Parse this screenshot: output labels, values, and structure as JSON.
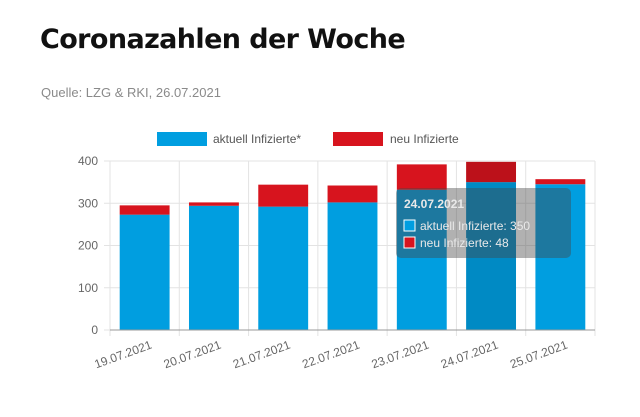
{
  "header": {
    "title": "Coronazahlen der Woche",
    "source": "Quelle: LZG & RKI, 26.07.2021"
  },
  "colors": {
    "active": "#009ee0",
    "new": "#d7141e",
    "grid": "#e3e3e3",
    "axis": "#999999"
  },
  "chart_data": {
    "type": "bar",
    "stacked": true,
    "categories": [
      "19.07.2021",
      "20.07.2021",
      "21.07.2021",
      "22.07.2021",
      "23.07.2021",
      "24.07.2021",
      "25.07.2021"
    ],
    "series": [
      {
        "name": "aktuell Infizierte*",
        "color": "#009ee0",
        "values": [
          273,
          294,
          292,
          302,
          332,
          350,
          345
        ]
      },
      {
        "name": "neu Infizierte",
        "color": "#d7141e",
        "values": [
          22,
          8,
          52,
          40,
          60,
          48,
          12
        ]
      }
    ],
    "ylim": [
      0,
      400
    ],
    "yticks": [
      0,
      100,
      200,
      300,
      400
    ],
    "grid": true,
    "legend": "top-center",
    "tooltip": {
      "category_index": 5,
      "title": "24.07.2021",
      "lines": [
        "aktuell Infizierte: 350",
        "neu Infizierte: 48"
      ]
    }
  }
}
